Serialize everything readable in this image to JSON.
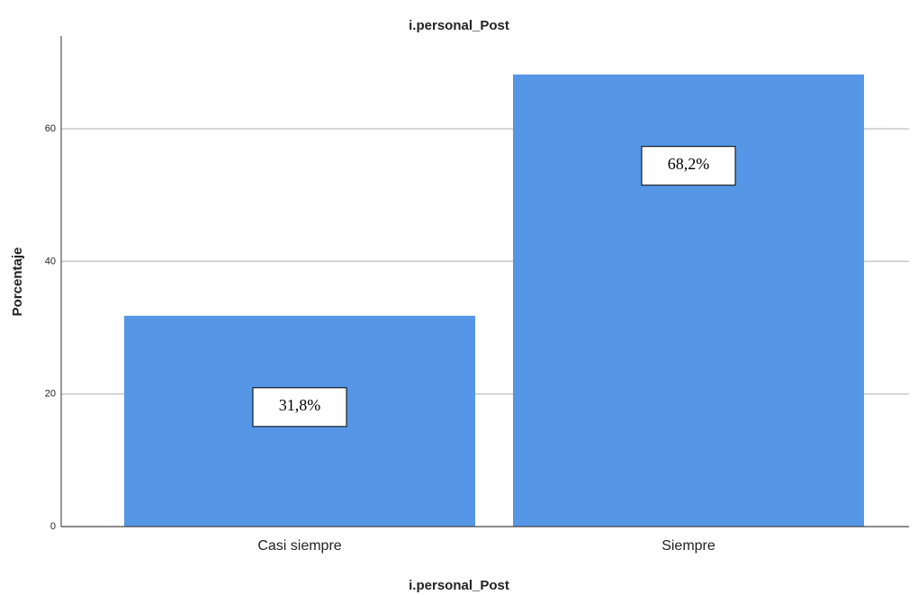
{
  "chart_data": {
    "type": "bar",
    "title": "i.personal_Post",
    "x_label": "i.personal_Post",
    "y_label": "Porcentaje",
    "categories": [
      "Casi siempre",
      "Siempre"
    ],
    "values": [
      31.8,
      68.2
    ],
    "value_labels": [
      "31,8%",
      "68,2%"
    ],
    "color": "#5596e6",
    "ylim": [
      0,
      74
    ],
    "yticks": [
      0,
      20,
      40,
      60
    ],
    "grid": true
  }
}
